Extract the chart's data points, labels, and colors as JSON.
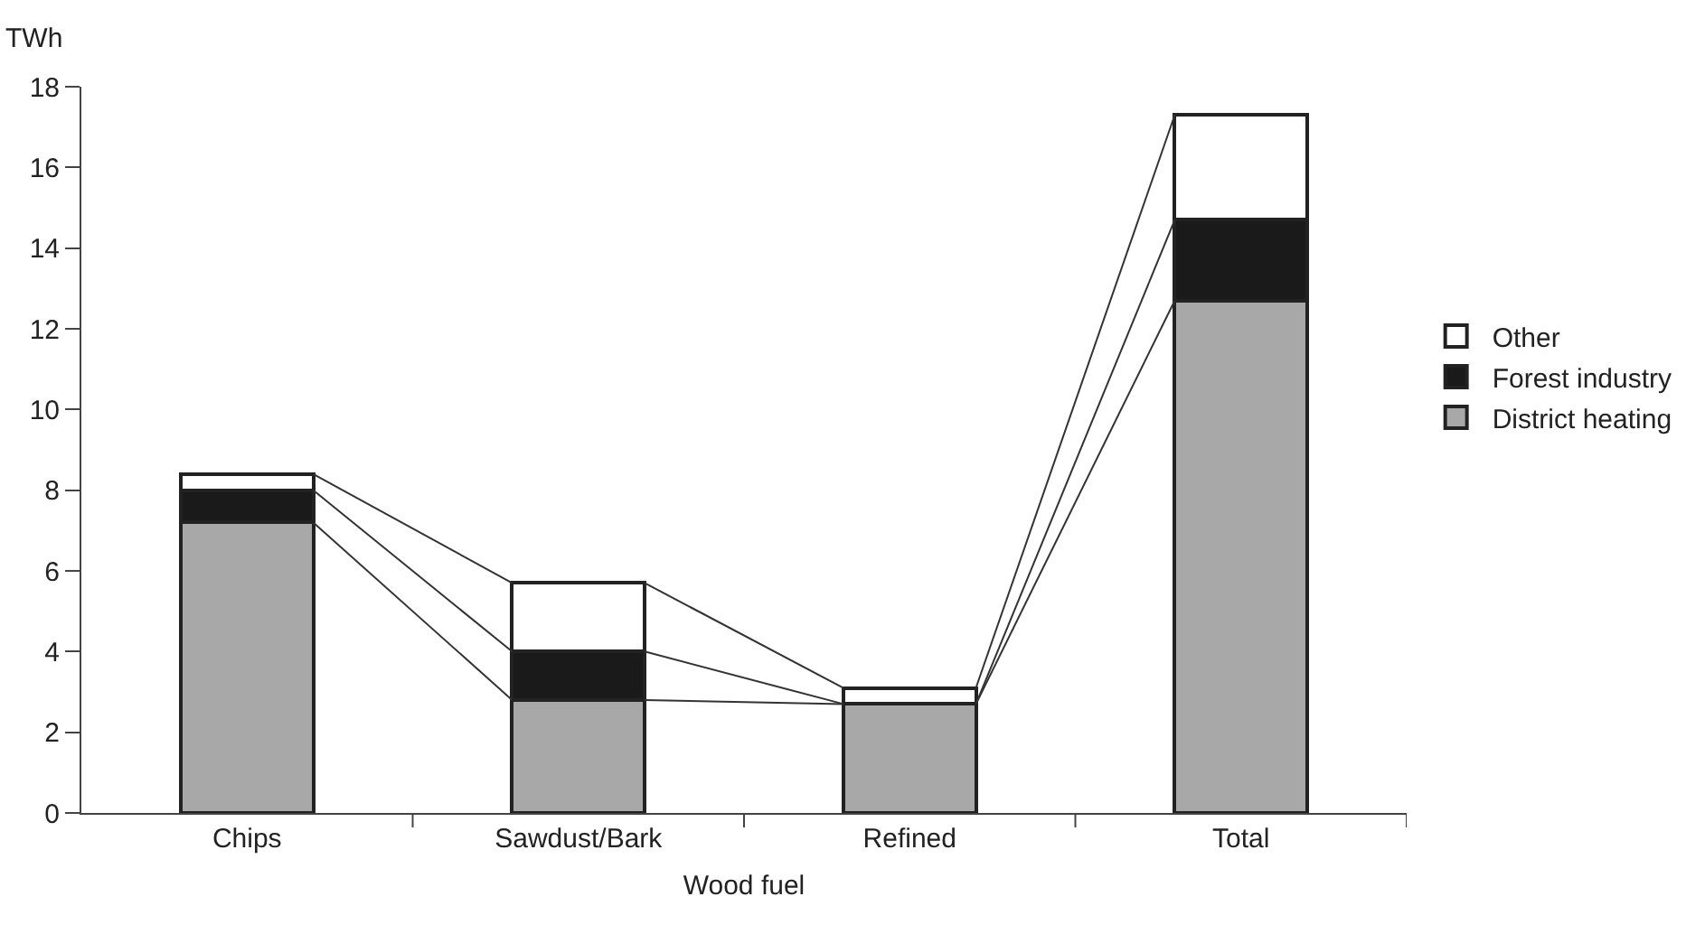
{
  "chart_data": {
    "type": "bar",
    "stacked": true,
    "xlabel": "Wood fuel",
    "ylabel": "TWh",
    "categories": [
      "Chips",
      "Sawdust/Bark",
      "Refined",
      "Total"
    ],
    "series": [
      {
        "name": "District heating",
        "color": "#a8a8a8",
        "values": [
          7.2,
          2.8,
          2.7,
          12.7
        ]
      },
      {
        "name": "Forest industry",
        "color": "#1a1a1a",
        "values": [
          0.8,
          1.2,
          0,
          2.0
        ]
      },
      {
        "name": "Other",
        "color": "#ffffff",
        "values": [
          0.4,
          1.7,
          0.4,
          2.6
        ]
      }
    ],
    "ylim": [
      0,
      18
    ],
    "yticks": [
      0,
      2,
      4,
      6,
      8,
      10,
      12,
      14,
      16,
      18
    ],
    "grid": false,
    "legend": "right"
  }
}
